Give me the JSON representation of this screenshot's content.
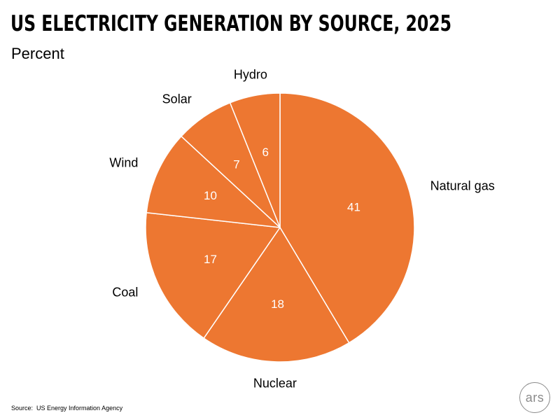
{
  "title": "US ELECTRICITY GENERATION BY SOURCE, 2025",
  "subtitle": "Percent",
  "source": "Source:  US Energy Information Agency",
  "logo_text": "ars",
  "colors": {
    "slice": "#ED7731",
    "slice_border": "#ffffff",
    "data_label": "#ffffff",
    "category_label": "#000000"
  },
  "chart_data": {
    "type": "pie",
    "title": "US ELECTRICITY GENERATION BY SOURCE, 2025",
    "subtitle": "Percent",
    "start": "12 o'clock",
    "direction": "clockwise",
    "slices": [
      {
        "label": "Natural gas",
        "value": 41
      },
      {
        "label": "Nuclear",
        "value": 18
      },
      {
        "label": "Coal",
        "value": 17
      },
      {
        "label": "Wind",
        "value": 10
      },
      {
        "label": "Solar",
        "value": 7
      },
      {
        "label": "Hydro",
        "value": 6
      }
    ]
  }
}
